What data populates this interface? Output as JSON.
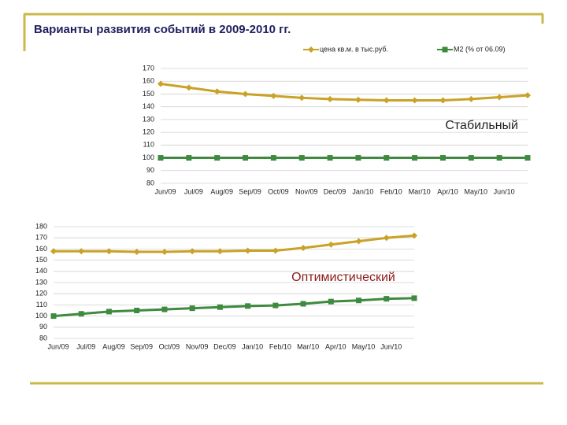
{
  "title": "Варианты развития событий в 2009-2010 гг.",
  "chart_data": [
    {
      "type": "line",
      "annotation": "Стабильный",
      "categories": [
        "Jun/09",
        "Jul/09",
        "Aug/09",
        "Sep/09",
        "Oct/09",
        "Nov/09",
        "Dec/09",
        "Jan/10",
        "Feb/10",
        "Mar/10",
        "Apr/10",
        "May/10",
        "Jun/10",
        null
      ],
      "series": [
        {
          "name": "цена кв.м. в тыс.руб.",
          "color": "#c9a227",
          "marker": "diamond",
          "values": [
            158,
            155,
            152,
            150,
            148.5,
            147,
            146,
            145.5,
            145,
            145,
            145,
            146,
            147.5,
            149
          ]
        },
        {
          "name": "M2 (% от 06.09)",
          "color": "#3e8a3e",
          "marker": "square",
          "values": [
            100,
            100,
            100,
            100,
            100,
            100,
            100,
            100,
            100,
            100,
            100,
            100,
            100,
            100
          ]
        }
      ],
      "ylim": [
        80,
        170
      ],
      "yticks": [
        80,
        90,
        100,
        110,
        120,
        130,
        140,
        150,
        160,
        170
      ],
      "grid": true,
      "legend": "top"
    },
    {
      "type": "line",
      "annotation": "Оптимистический",
      "categories": [
        "Jun/09",
        "Jul/09",
        "Aug/09",
        "Sep/09",
        "Oct/09",
        "Nov/09",
        "Dec/09",
        "Jan/10",
        "Feb/10",
        "Mar/10",
        "Apr/10",
        "May/10",
        "Jun/10",
        null
      ],
      "series": [
        {
          "color": "#c9a227",
          "marker": "diamond",
          "values": [
            158,
            158,
            158,
            157.5,
            157.5,
            158,
            158,
            158.5,
            158.5,
            161,
            164,
            167,
            170,
            172
          ]
        },
        {
          "color": "#3e8a3e",
          "marker": "square",
          "values": [
            100,
            102,
            104,
            105,
            106,
            107,
            108,
            109,
            109.5,
            111,
            113,
            114,
            115.5,
            116
          ]
        }
      ],
      "ylim": [
        80,
        180
      ],
      "yticks": [
        80,
        90,
        100,
        110,
        120,
        130,
        140,
        150,
        160,
        170,
        180
      ],
      "grid": true
    }
  ]
}
